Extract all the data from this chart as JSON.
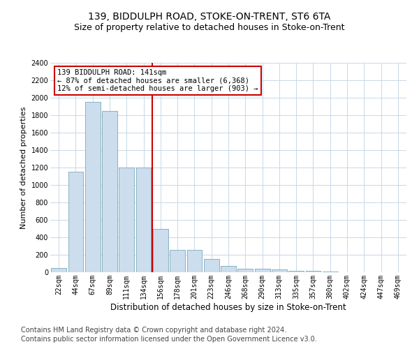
{
  "title1": "139, BIDDULPH ROAD, STOKE-ON-TRENT, ST6 6TA",
  "title2": "Size of property relative to detached houses in Stoke-on-Trent",
  "xlabel": "Distribution of detached houses by size in Stoke-on-Trent",
  "ylabel": "Number of detached properties",
  "categories": [
    "22sqm",
    "44sqm",
    "67sqm",
    "89sqm",
    "111sqm",
    "134sqm",
    "156sqm",
    "178sqm",
    "201sqm",
    "223sqm",
    "246sqm",
    "268sqm",
    "290sqm",
    "313sqm",
    "335sqm",
    "357sqm",
    "380sqm",
    "402sqm",
    "424sqm",
    "447sqm",
    "469sqm"
  ],
  "values": [
    50,
    1150,
    1950,
    1850,
    1200,
    1200,
    500,
    260,
    260,
    150,
    70,
    40,
    40,
    30,
    15,
    15,
    8,
    3,
    2,
    1,
    1
  ],
  "bar_color": "#ccdded",
  "bar_edge_color": "#7aaabb",
  "vline_color": "#cc0000",
  "annotation_text": "139 BIDDULPH ROAD: 141sqm\n← 87% of detached houses are smaller (6,368)\n12% of semi-detached houses are larger (903) →",
  "annotation_box_color": "#ffffff",
  "annotation_box_edge_color": "#cc0000",
  "ylim": [
    0,
    2400
  ],
  "yticks": [
    0,
    200,
    400,
    600,
    800,
    1000,
    1200,
    1400,
    1600,
    1800,
    2000,
    2200,
    2400
  ],
  "footer1": "Contains HM Land Registry data © Crown copyright and database right 2024.",
  "footer2": "Contains public sector information licensed under the Open Government Licence v3.0.",
  "bg_color": "#ffffff",
  "grid_color": "#c8d8e8",
  "title1_fontsize": 10,
  "title2_fontsize": 9,
  "xlabel_fontsize": 8.5,
  "ylabel_fontsize": 8,
  "tick_fontsize": 7,
  "footer_fontsize": 7,
  "ann_fontsize": 7.5
}
